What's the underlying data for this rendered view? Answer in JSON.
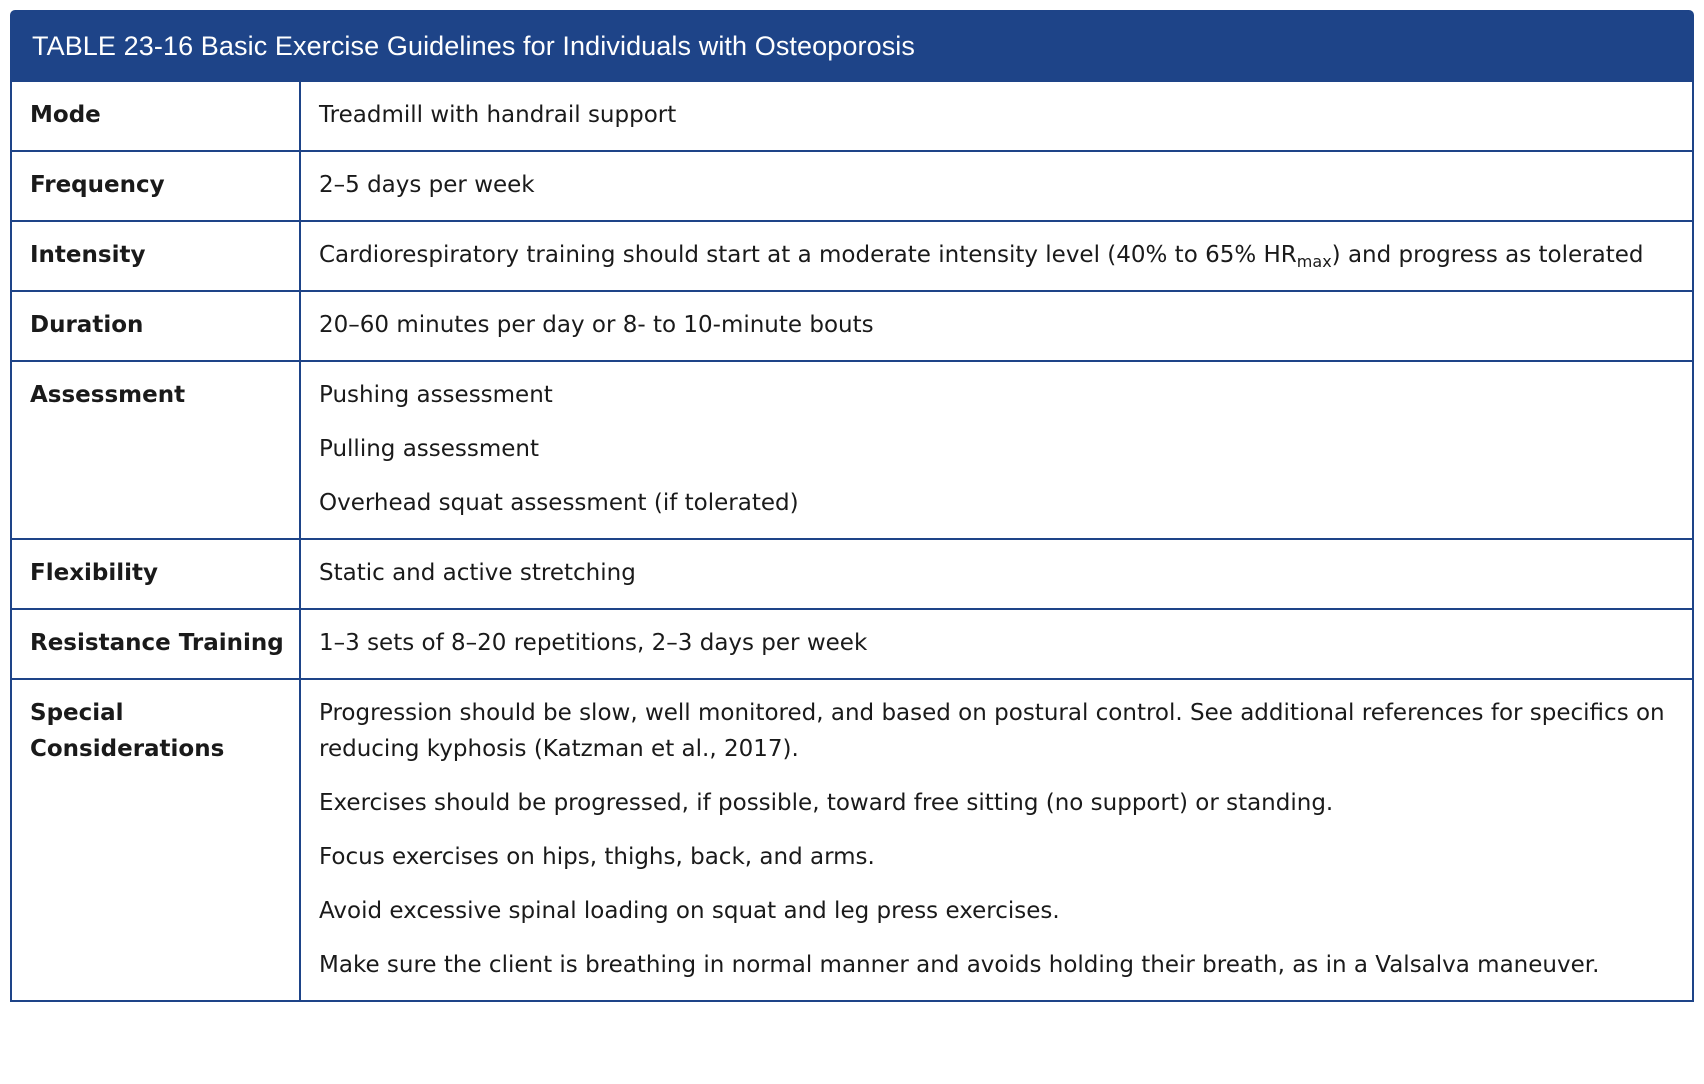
{
  "table": {
    "title": "TABLE 23-16 Basic Exercise Guidelines for Individuals with Osteoporosis",
    "rows": [
      {
        "label": "Mode",
        "lines": [
          "Treadmill with handrail support"
        ]
      },
      {
        "label": "Frequency",
        "lines": [
          "2–5 days per week"
        ]
      },
      {
        "label": "Intensity",
        "intensity": {
          "before": "Cardiorespiratory training should start at a moderate intensity level (40% to 65% HR",
          "subscript": "max",
          "after": ") and progress as tolerated"
        }
      },
      {
        "label": "Duration",
        "lines": [
          "20–60 minutes per day or 8- to 10-minute bouts"
        ]
      },
      {
        "label": "Assessment",
        "lines": [
          "Pushing assessment",
          "Pulling assessment",
          "Overhead squat assessment (if tolerated)"
        ]
      },
      {
        "label": "Flexibility",
        "lines": [
          "Static and active stretching"
        ]
      },
      {
        "label": "Resistance Training",
        "lines": [
          "1–3 sets of 8–20 repetitions, 2–3 days per week"
        ]
      },
      {
        "label_line1": "Special",
        "label_line2": "Considerations",
        "lines": [
          "Progression should be slow, well monitored, and based on postural control. See additional references for specifics on reducing kyphosis (Katzman et al., 2017).",
          "Exercises should be progressed, if possible, toward free sitting (no support) or standing.",
          "Focus exercises on hips, thighs, back, and arms.",
          "Avoid excessive spinal loading on squat and leg press exercises.",
          "Make sure the client is breathing in normal manner and avoids holding their breath, as in a Valsalva maneuver."
        ]
      }
    ]
  }
}
